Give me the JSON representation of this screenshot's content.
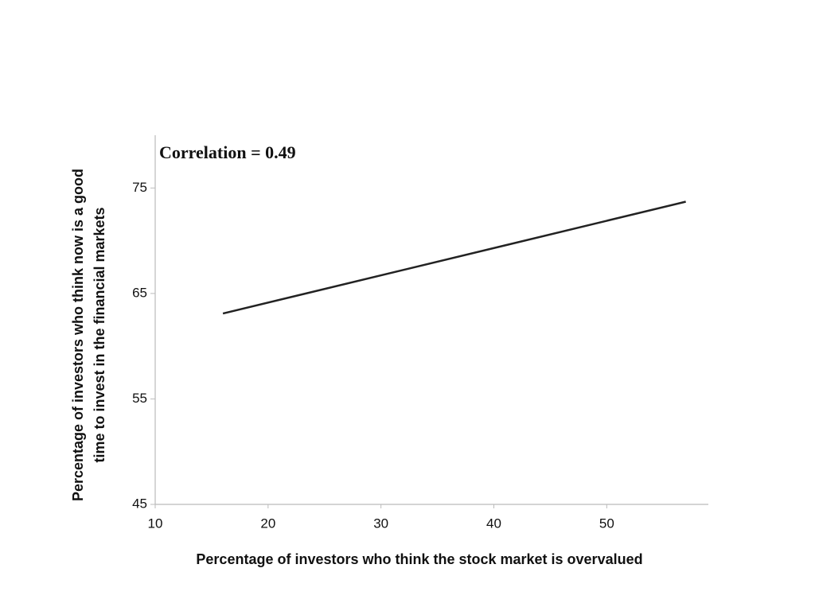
{
  "chart_data": {
    "type": "line",
    "annotation": "Correlation = 0.49",
    "xlabel": "Percentage of investors who think the stock market is overvalued",
    "ylabel": [
      "Percentage of investors who think now is a good",
      "time to invest in the financial markets"
    ],
    "x": [
      16,
      57
    ],
    "series": [
      {
        "color": "#222222",
        "values": [
          63.1,
          73.7
        ]
      }
    ],
    "xlim": [
      10,
      59
    ],
    "xticks": [
      10,
      20,
      30,
      40,
      50
    ],
    "ylim": [
      45,
      80
    ],
    "yticks": [
      45,
      55,
      65,
      75
    ],
    "grid": false
  }
}
